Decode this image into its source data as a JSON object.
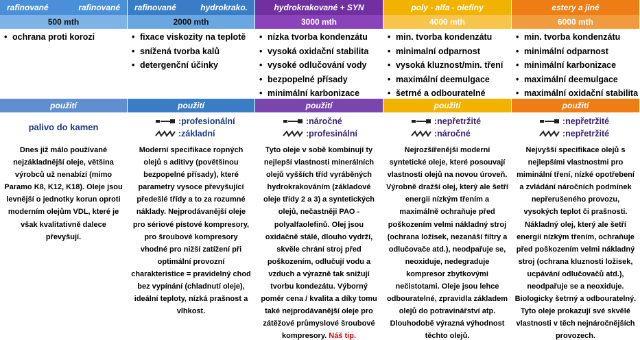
{
  "columns": [
    {
      "header_left": "rafinované",
      "header_right": "rafinované",
      "interval": "500 mth",
      "features": [
        "ochrana proti korozi"
      ],
      "usage_label": "použití",
      "usage_value": "palivo do kamen",
      "grades": [],
      "description": "Dnes již málo používané nejzákladnější oleje, většina výrobců už nenabízí (mimo Paramo K8, K12, K18). Oleje jsou levnější o jednotky korun oproti moderním olejům VDL, které je však kvalitativně dalece převyšují."
    },
    {
      "header_left": "rafinované",
      "header_right": "hydrokrako.",
      "interval": "2000 mth",
      "features": [
        "fixace viskozity na teplotě",
        "snížená tvorba kalů",
        "detergenční účinky"
      ],
      "usage_label": "použití",
      "grades": [
        ":profesionální",
        ":základní"
      ],
      "description": "Moderní specifikace ropných olejů s aditivy (povětšinou bezpopelné přísady), které parametry vysoce převyšující předešlé třídy a to za rozumné náklady. Nejprodávanější oleje pro sériové pístové kompresory, pro šroubové kompresory vhodné pro nižší zatížení při optimální provozní charakteristice = pravidelný chod bez vypínání (chladnutí oleje), ideální teploty, nízká prašnost a vlhkost."
    },
    {
      "header_center": "hydrokrakované + SYN",
      "interval": "3000 mth",
      "features": [
        "nízka tvorba kondenzátu",
        "vysoká oxidační stabilita",
        "vysoké odlučování vody",
        "bezpopelné přísady",
        "minimální karbonizace"
      ],
      "usage_label": "použití",
      "grades": [
        ":náročné",
        ":profesinální"
      ],
      "description": "Tyto oleje v sobě kombinují ty nejlepší vlastnosti minerálních olejů vyšších tříd vyráběných hydrokrakováním (základové oleje třídy 2 a 3) a syntetických olejů, nečastněji PAO - polyalfaolefinů. Olej jsou oxidačně stálé, dlouho vydrží, skvěle chrání stroj před poškozením, odlučují vodu a vzduch a výrazně tak snižují tvorbu kondezátu. Výborný poměr cena / kvalita a díky tomu také nejprodávanější oleje pro zátěžové průmyslové šroubové kompresory.",
      "tip": "Náš tip."
    },
    {
      "header_center": "poly - alfa - olefiny",
      "interval": "4000 mth",
      "features": [
        "min. tvorba kondenzátu",
        "minimalní odparnost",
        "vysoká kluznost/min. tření",
        "maximální deemulgace",
        "šetrné a odbouratelné"
      ],
      "usage_label": "použití",
      "grades": [
        ":nepřetržité",
        ":náročné"
      ],
      "description": "Nejrozšířenější moderní syntetické oleje, které posouvají vlastnosti olejů na novou úroveň. Výrobně dražší olej, který ale šetří energii nízkým třením a maximálně ochraňuje před poškozením velmi nákladný stroj (ochrana ložisek, nezanáší filtry a odlučovače atd.), neodpařuje se, neoxiduje, nedegraduje kompresor zbytkovými nečistotami. Oleje jsou lehce odbouratelné, zpravidla základem olejů do potravinářství atp. Dlouhodobě výrazná výhodnost těchto olejů."
    },
    {
      "header_center": "estery a jiné",
      "interval": "6000 mth",
      "features": [
        "min. tvorba kondenzátu",
        "minimální odparnost",
        "minimální karbonizace",
        "maximální deemulgace",
        "maximální oxidační stabilita"
      ],
      "usage_label": "použití",
      "grades": [
        ":nepřetržité",
        ":nepřetržité"
      ],
      "description": "Nejvyšší specifikace olejů s nejlepšími vlastnostmi pro miminální tření, nízké opotřebení a zvládání náročních podmínek nepřerušeného provozu, vysokých teplot či prašnosti. Nákladný olej, který ale šetří energii nízkým třením, ochraňuje před poškozením velmi nákladný stroj (ochrana kluznosti ložisek, ucpávání odlučovačů atd.), neodpařuje se a neoxiduje. Biologicky šetrný a odbouratelný. Tyto oleje prokazují své skvělé vlastnosti v těch nejnáročnějších provozech."
    }
  ],
  "icons": {
    "grade_top": "compressor-piston-icon",
    "grade_bottom": "compressor-screw-icon"
  }
}
